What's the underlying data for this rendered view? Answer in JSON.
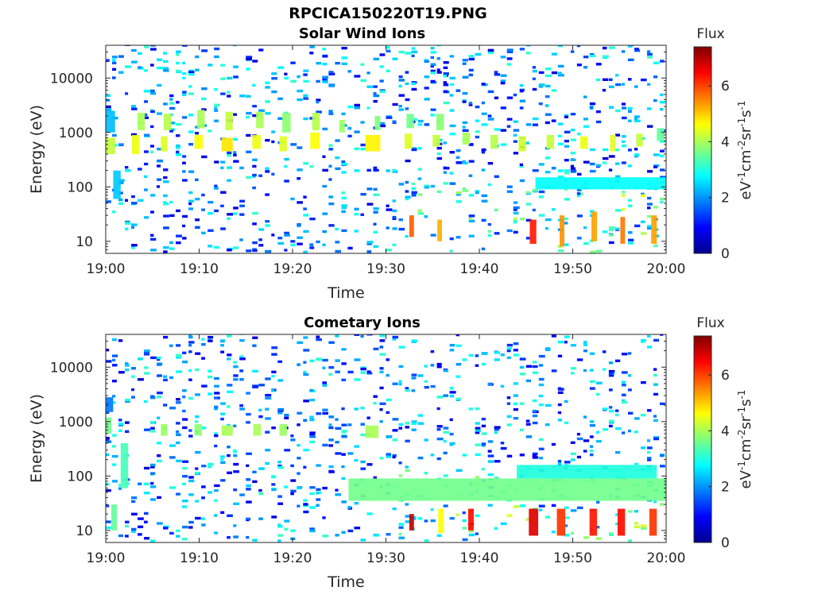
{
  "figure": {
    "title": "RPCICA150220T19.PNG"
  },
  "chart_data": [
    {
      "type": "heatmap",
      "title": "Solar Wind Ions",
      "xlabel": "Time",
      "ylabel": "Energy (eV)",
      "x_ticks": [
        "19:00",
        "19:10",
        "19:20",
        "19:30",
        "19:40",
        "19:50",
        "20:00"
      ],
      "x_range": [
        "19:00",
        "20:00"
      ],
      "y_scale": "log",
      "y_ticks": [
        10,
        100,
        1000,
        10000
      ],
      "y_tick_labels": [
        "10",
        "100",
        "1000",
        "10000"
      ],
      "y_range": [
        6,
        40000
      ],
      "colorbar": {
        "title": "Flux",
        "label": "eV-1cm-2sr-1s-1",
        "ticks": [
          0,
          2,
          4,
          6
        ],
        "range": [
          0,
          7.4
        ],
        "colormap": "jet"
      },
      "cells": [
        {
          "t": [
            0.0,
            1.0
          ],
          "e": [
            400,
            800
          ],
          "v": 4.2
        },
        {
          "t": [
            0.0,
            1.0
          ],
          "e": [
            1000,
            2500
          ],
          "v": 2.3
        },
        {
          "t": [
            0.8,
            1.6
          ],
          "e": [
            60,
            200
          ],
          "v": 2.4
        },
        {
          "t": [
            2.8,
            3.6
          ],
          "e": [
            400,
            900
          ],
          "v": 4.5
        },
        {
          "t": [
            3.4,
            4.2
          ],
          "e": [
            1100,
            2300
          ],
          "v": 4.0
        },
        {
          "t": [
            5.9,
            6.6
          ],
          "e": [
            450,
            850
          ],
          "v": 4.4
        },
        {
          "t": [
            6.2,
            7.0
          ],
          "e": [
            1100,
            2200
          ],
          "v": 4.1
        },
        {
          "t": [
            9.5,
            10.4
          ],
          "e": [
            500,
            900
          ],
          "v": 4.6
        },
        {
          "t": [
            9.8,
            10.6
          ],
          "e": [
            1200,
            2600
          ],
          "v": 4.0
        },
        {
          "t": [
            12.4,
            13.6
          ],
          "e": [
            450,
            800
          ],
          "v": 4.8
        },
        {
          "t": [
            12.8,
            13.6
          ],
          "e": [
            1100,
            2400
          ],
          "v": 4.2
        },
        {
          "t": [
            15.7,
            16.6
          ],
          "e": [
            500,
            900
          ],
          "v": 4.5
        },
        {
          "t": [
            16.1,
            16.9
          ],
          "e": [
            1200,
            2400
          ],
          "v": 4.0
        },
        {
          "t": [
            18.6,
            19.4
          ],
          "e": [
            450,
            850
          ],
          "v": 4.4
        },
        {
          "t": [
            18.9,
            19.8
          ],
          "e": [
            1000,
            2300
          ],
          "v": 3.8
        },
        {
          "t": [
            21.9,
            22.9
          ],
          "e": [
            500,
            1000
          ],
          "v": 4.6
        },
        {
          "t": [
            22.1,
            22.9
          ],
          "e": [
            1100,
            2300
          ],
          "v": 4.1
        },
        {
          "t": [
            25.0,
            25.6
          ],
          "e": [
            1000,
            1700
          ],
          "v": 3.9
        },
        {
          "t": [
            27.8,
            29.4
          ],
          "e": [
            450,
            900
          ],
          "v": 4.7
        },
        {
          "t": [
            28.8,
            29.4
          ],
          "e": [
            1100,
            2000
          ],
          "v": 3.7
        },
        {
          "t": [
            32.0,
            32.8
          ],
          "e": [
            500,
            950
          ],
          "v": 4.4
        },
        {
          "t": [
            32.2,
            33.0
          ],
          "e": [
            1200,
            2200
          ],
          "v": 3.6
        },
        {
          "t": [
            35.0,
            35.8
          ],
          "e": [
            550,
            900
          ],
          "v": 4.2
        },
        {
          "t": [
            35.4,
            36.2
          ],
          "e": [
            1100,
            2200
          ],
          "v": 3.8
        },
        {
          "t": [
            38.2,
            39.0
          ],
          "e": [
            600,
            1000
          ],
          "v": 4.0
        },
        {
          "t": [
            41.2,
            42.0
          ],
          "e": [
            500,
            900
          ],
          "v": 4.1
        },
        {
          "t": [
            44.2,
            45.0
          ],
          "e": [
            450,
            850
          ],
          "v": 4.3
        },
        {
          "t": [
            47.2,
            48.0
          ],
          "e": [
            500,
            900
          ],
          "v": 4.2
        },
        {
          "t": [
            50.8,
            51.6
          ],
          "e": [
            500,
            850
          ],
          "v": 4.5
        },
        {
          "t": [
            54.0,
            54.6
          ],
          "e": [
            450,
            900
          ],
          "v": 4.4
        },
        {
          "t": [
            56.8,
            57.5
          ],
          "e": [
            550,
            950
          ],
          "v": 4.2
        },
        {
          "t": [
            59.0,
            59.8
          ],
          "e": [
            700,
            1200
          ],
          "v": 3.5
        },
        {
          "t": [
            32.5,
            33.0
          ],
          "e": [
            12,
            30
          ],
          "v": 5.8
        },
        {
          "t": [
            35.5,
            36.0
          ],
          "e": [
            10,
            25
          ],
          "v": 5.2
        },
        {
          "t": [
            45.4,
            46.1
          ],
          "e": [
            9,
            25
          ],
          "v": 6.3
        },
        {
          "t": [
            48.6,
            49.1
          ],
          "e": [
            8,
            30
          ],
          "v": 5.4
        },
        {
          "t": [
            52.0,
            52.6
          ],
          "e": [
            10,
            35
          ],
          "v": 5.3
        },
        {
          "t": [
            55.1,
            55.6
          ],
          "e": [
            9,
            28
          ],
          "v": 5.6
        },
        {
          "t": [
            58.4,
            59.0
          ],
          "e": [
            9,
            30
          ],
          "v": 5.3
        },
        {
          "t": [
            46.0,
            60.0
          ],
          "e": [
            90,
            150
          ],
          "v": 2.8
        }
      ]
    },
    {
      "type": "heatmap",
      "title": "Cometary Ions",
      "xlabel": "Time",
      "ylabel": "Energy (eV)",
      "x_ticks": [
        "19:00",
        "19:10",
        "19:20",
        "19:30",
        "19:40",
        "19:50",
        "20:00"
      ],
      "x_range": [
        "19:00",
        "20:00"
      ],
      "y_scale": "log",
      "y_ticks": [
        10,
        100,
        1000,
        10000
      ],
      "y_tick_labels": [
        "10",
        "100",
        "1000",
        "10000"
      ],
      "y_range": [
        6,
        40000
      ],
      "colorbar": {
        "title": "Flux",
        "label": "eV-1cm-2sr-1s-1",
        "ticks": [
          0,
          2,
          4,
          6
        ],
        "range": [
          0,
          7.4
        ],
        "colormap": "jet"
      },
      "cells": [
        {
          "t": [
            0.0,
            0.6
          ],
          "e": [
            600,
            1200
          ],
          "v": 3.6
        },
        {
          "t": [
            0.0,
            0.8
          ],
          "e": [
            1500,
            2800
          ],
          "v": 1.8
        },
        {
          "t": [
            0.6,
            1.2
          ],
          "e": [
            10,
            30
          ],
          "v": 3.5
        },
        {
          "t": [
            1.6,
            2.4
          ],
          "e": [
            60,
            400
          ],
          "v": 3.3
        },
        {
          "t": [
            5.9,
            6.6
          ],
          "e": [
            550,
            900
          ],
          "v": 3.9
        },
        {
          "t": [
            9.5,
            10.3
          ],
          "e": [
            550,
            900
          ],
          "v": 3.8
        },
        {
          "t": [
            12.4,
            13.6
          ],
          "e": [
            550,
            850
          ],
          "v": 4.0
        },
        {
          "t": [
            15.8,
            16.6
          ],
          "e": [
            550,
            900
          ],
          "v": 4.0
        },
        {
          "t": [
            18.6,
            19.4
          ],
          "e": [
            550,
            900
          ],
          "v": 3.9
        },
        {
          "t": [
            27.8,
            29.2
          ],
          "e": [
            500,
            850
          ],
          "v": 4.0
        },
        {
          "t": [
            26.0,
            60.0
          ],
          "e": [
            35,
            90
          ],
          "v": 3.6
        },
        {
          "t": [
            32.5,
            33.0
          ],
          "e": [
            10,
            20
          ],
          "v": 6.9
        },
        {
          "t": [
            35.6,
            36.2
          ],
          "e": [
            9,
            25
          ],
          "v": 4.6
        },
        {
          "t": [
            38.8,
            39.4
          ],
          "e": [
            10,
            25
          ],
          "v": 6.4
        },
        {
          "t": [
            45.3,
            46.3
          ],
          "e": [
            8,
            25
          ],
          "v": 6.7
        },
        {
          "t": [
            48.3,
            49.2
          ],
          "e": [
            8,
            25
          ],
          "v": 6.1
        },
        {
          "t": [
            51.8,
            52.6
          ],
          "e": [
            8,
            25
          ],
          "v": 6.3
        },
        {
          "t": [
            54.8,
            55.6
          ],
          "e": [
            8,
            25
          ],
          "v": 6.4
        },
        {
          "t": [
            58.2,
            59.0
          ],
          "e": [
            8,
            25
          ],
          "v": 6.1
        },
        {
          "t": [
            44.0,
            59.0
          ],
          "e": [
            90,
            160
          ],
          "v": 3.0
        }
      ]
    }
  ]
}
